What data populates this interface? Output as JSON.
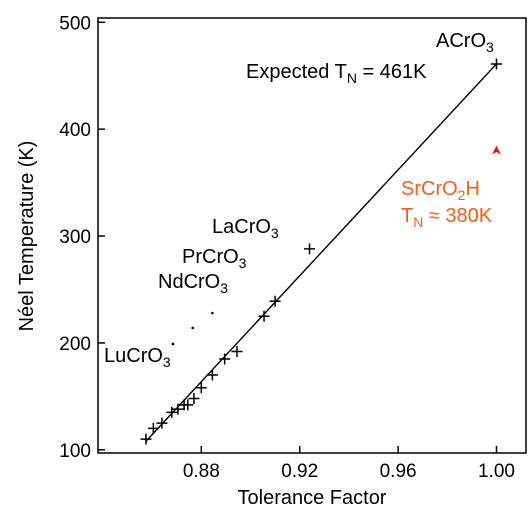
{
  "chart_data": {
    "type": "scatter",
    "xlabel": "Tolerance Factor",
    "ylabel": "Néel Temperature (K)",
    "xlim": [
      0.838,
      1.012
    ],
    "ylim": [
      97,
      504
    ],
    "x_ticks": [
      0.88,
      0.92,
      0.96,
      1.0
    ],
    "x_tick_labels": [
      "0.88",
      "0.92",
      "0.96",
      "1.00"
    ],
    "y_ticks": [
      100,
      200,
      300,
      400,
      500
    ],
    "y_tick_labels": [
      "100",
      "200",
      "300",
      "400",
      "500"
    ],
    "grid": false,
    "series": [
      {
        "marker": "plus",
        "color": "#000000",
        "points": [
          {
            "x": 0.8575,
            "y": 110
          },
          {
            "x": 0.8605,
            "y": 120
          },
          {
            "x": 0.864,
            "y": 125
          },
          {
            "x": 0.868,
            "y": 135
          },
          {
            "x": 0.8705,
            "y": 138
          },
          {
            "x": 0.873,
            "y": 142
          },
          {
            "x": 0.8745,
            "y": 142
          },
          {
            "x": 0.877,
            "y": 148
          },
          {
            "x": 0.88,
            "y": 158
          },
          {
            "x": 0.8845,
            "y": 170
          },
          {
            "x": 0.8895,
            "y": 185
          },
          {
            "x": 0.8945,
            "y": 192
          },
          {
            "x": 0.9055,
            "y": 225
          },
          {
            "x": 0.91,
            "y": 239
          },
          {
            "x": 0.924,
            "y": 288
          },
          {
            "x": 1.0,
            "y": 461
          }
        ]
      },
      {
        "marker": "dot",
        "color": "#000000",
        "points": [
          {
            "x": 0.8685,
            "y": 199
          },
          {
            "x": 0.8765,
            "y": 214
          },
          {
            "x": 0.8845,
            "y": 228
          }
        ]
      },
      {
        "marker": "triangle",
        "color": "#e01b1b",
        "points": [
          {
            "x": 1.0,
            "y": 380
          }
        ]
      }
    ],
    "fit_line": {
      "x": [
        0.8575,
        1.0
      ],
      "y": [
        108,
        461
      ]
    },
    "annotations": {
      "acro3": {
        "base": "ACrO",
        "sub": "3"
      },
      "expected": {
        "pre": "Expected T",
        "sub": "N",
        "post": " = 461K"
      },
      "lacro3": {
        "base": "LaCrO",
        "sub": "3"
      },
      "prcro3": {
        "base": "PrCrO",
        "sub": "3"
      },
      "ndcro3": {
        "base": "NdCrO",
        "sub": "3"
      },
      "lucro3": {
        "base": "LuCrO",
        "sub": "3"
      },
      "srcro2h": {
        "pre": "SrCrO",
        "sub": "2",
        "post": "H"
      },
      "srcro2h_tn": {
        "pre": "T",
        "sub": "N",
        "post": " ≈ 380K"
      }
    },
    "colors": {
      "highlight_text": "#ff5a14",
      "highlight_marker": "#e01b1b",
      "axes": "#000000"
    }
  }
}
